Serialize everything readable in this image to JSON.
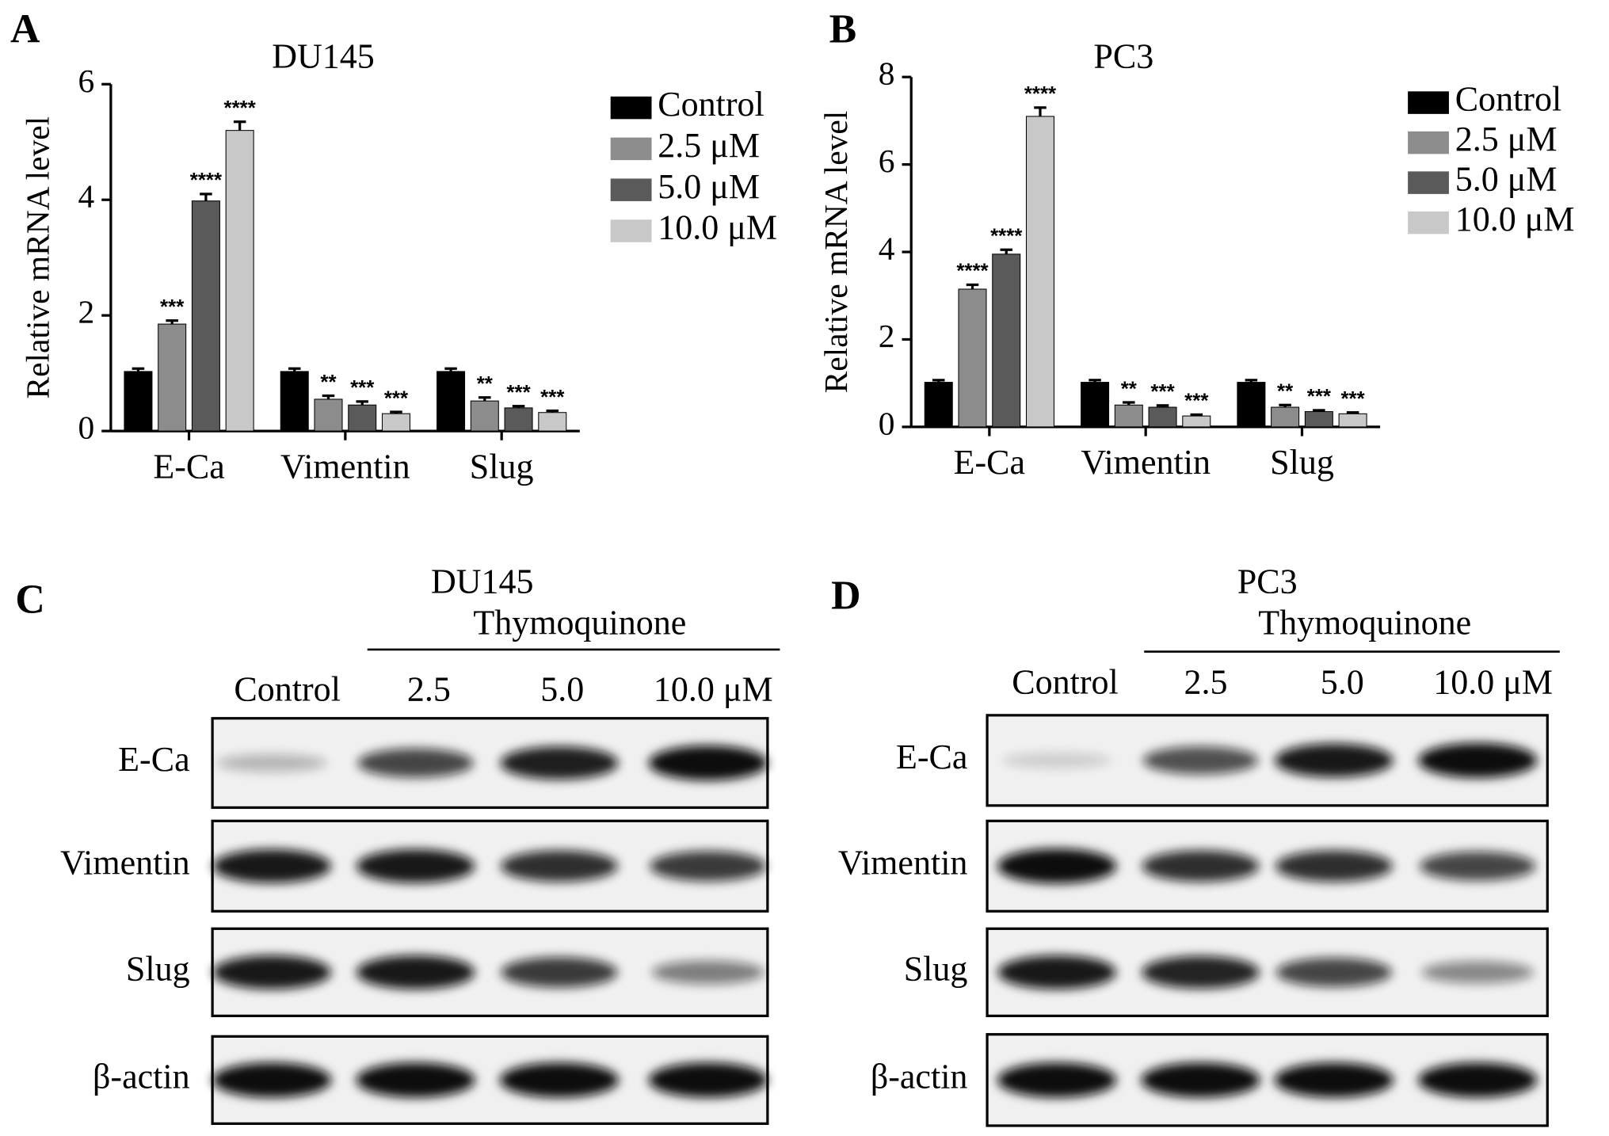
{
  "chart_data": [
    {
      "type": "bar",
      "panel": "A",
      "title": "DU145",
      "y_label": "Relative mRNA level",
      "categories": [
        "E-Ca",
        "Vimentin",
        "Slug"
      ],
      "ylim": [
        0,
        6
      ],
      "yticks": [
        0,
        2,
        4,
        6
      ],
      "series": [
        {
          "name": "Control",
          "color": "#000000",
          "values": [
            1.03,
            1.03,
            1.03
          ],
          "errors": [
            0.05,
            0.05,
            0.05
          ]
        },
        {
          "name": "2.5 μM",
          "color": "#8c8c8c",
          "values": [
            1.85,
            0.55,
            0.52
          ],
          "errors": [
            0.06,
            0.06,
            0.06
          ],
          "significance": [
            "***",
            "**",
            "**"
          ]
        },
        {
          "name": "5.0 μM",
          "color": "#5a5a5a",
          "values": [
            3.98,
            0.45,
            0.4
          ],
          "errors": [
            0.12,
            0.06,
            0.03
          ],
          "significance": [
            "****",
            "***",
            "***"
          ]
        },
        {
          "name": "10.0 μM",
          "color": "#c8c8c8",
          "values": [
            5.2,
            0.3,
            0.32
          ],
          "errors": [
            0.15,
            0.03,
            0.03
          ],
          "significance": [
            "****",
            "***",
            "***"
          ]
        }
      ]
    },
    {
      "type": "bar",
      "panel": "B",
      "title": "PC3",
      "y_label": "Relative mRNA level",
      "categories": [
        "E-Ca",
        "Vimentin",
        "Slug"
      ],
      "ylim": [
        0,
        8
      ],
      "yticks": [
        0,
        2,
        4,
        6,
        8
      ],
      "series": [
        {
          "name": "Control",
          "color": "#000000",
          "values": [
            1.02,
            1.02,
            1.02
          ],
          "errors": [
            0.05,
            0.05,
            0.05
          ]
        },
        {
          "name": "2.5 μM",
          "color": "#8c8c8c",
          "values": [
            3.15,
            0.5,
            0.45
          ],
          "errors": [
            0.1,
            0.06,
            0.05
          ],
          "significance": [
            "****",
            "**",
            "**"
          ]
        },
        {
          "name": "5.0 μM",
          "color": "#5a5a5a",
          "values": [
            3.95,
            0.45,
            0.35
          ],
          "errors": [
            0.1,
            0.04,
            0.03
          ],
          "significance": [
            "****",
            "***",
            "***"
          ]
        },
        {
          "name": "10.0 μM",
          "color": "#c8c8c8",
          "values": [
            7.1,
            0.25,
            0.3
          ],
          "errors": [
            0.2,
            0.03,
            0.03
          ],
          "significance": [
            "****",
            "***",
            "***"
          ]
        }
      ]
    }
  ],
  "blots": [
    {
      "panel": "C",
      "title": "DU145",
      "treatment": "Thymoquinone",
      "lanes": [
        "Control",
        "2.5",
        "5.0",
        "10.0 μM"
      ],
      "rows": [
        "E-Ca",
        "Vimentin",
        "Slug",
        "β-actin"
      ]
    },
    {
      "panel": "D",
      "title": "PC3",
      "treatment": "Thymoquinone",
      "lanes": [
        "Control",
        "2.5",
        "5.0",
        "10.0 μM"
      ],
      "rows": [
        "E-Ca",
        "Vimentin",
        "Slug",
        "β-actin"
      ]
    }
  ]
}
